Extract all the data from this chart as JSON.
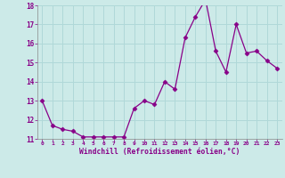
{
  "x": [
    0,
    1,
    2,
    3,
    4,
    5,
    6,
    7,
    8,
    9,
    10,
    11,
    12,
    13,
    14,
    15,
    16,
    17,
    18,
    19,
    20,
    21,
    22,
    23
  ],
  "y": [
    13.0,
    11.7,
    11.5,
    11.4,
    11.1,
    11.1,
    11.1,
    11.1,
    11.1,
    12.6,
    13.0,
    12.8,
    14.0,
    13.6,
    16.3,
    17.4,
    18.3,
    15.6,
    14.5,
    17.0,
    15.5,
    15.6,
    15.1,
    14.7
  ],
  "ylim": [
    11,
    18
  ],
  "yticks": [
    11,
    12,
    13,
    14,
    15,
    16,
    17,
    18
  ],
  "xticks": [
    0,
    1,
    2,
    3,
    4,
    5,
    6,
    7,
    8,
    9,
    10,
    11,
    12,
    13,
    14,
    15,
    16,
    17,
    18,
    19,
    20,
    21,
    22,
    23
  ],
  "xlabel": "Windchill (Refroidissement éolien,°C)",
  "line_color": "#880088",
  "marker_color": "#880088",
  "bg_color": "#cceae8",
  "grid_color": "#b0d8d8",
  "label_color": "#880088"
}
